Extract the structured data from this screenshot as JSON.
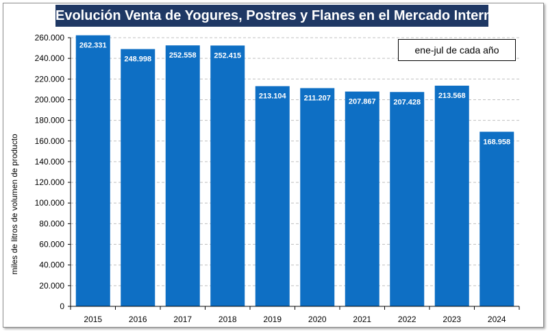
{
  "chart_data": {
    "type": "bar",
    "title": "Evolución Venta de Yogures, Postres y Flanes en el Mercado Interno",
    "annotation": "ene-jul de cada año",
    "xlabel": "",
    "ylabel": "miles de litros de volumen de producto",
    "ylim": [
      0,
      260000
    ],
    "ytick_step": 20000,
    "grid": true,
    "categories": [
      "2015",
      "2016",
      "2017",
      "2018",
      "2019",
      "2020",
      "2021",
      "2022",
      "2023",
      "2024"
    ],
    "values": [
      262331,
      248998,
      252558,
      252415,
      213104,
      211207,
      207867,
      207428,
      213568,
      168958
    ],
    "data_labels": [
      "262.331",
      "248.998",
      "252.558",
      "252.415",
      "213.104",
      "211.207",
      "207.867",
      "207.428",
      "213.568",
      "168.958"
    ],
    "yticks": [
      "0",
      "20.000",
      "40.000",
      "60.000",
      "80.000",
      "100.000",
      "120.000",
      "140.000",
      "160.000",
      "180.000",
      "200.000",
      "220.000",
      "240.000",
      "260.000"
    ],
    "colors": {
      "bar": "#0e6fc4",
      "title_bg": "#1f3864",
      "grid": "#bfbfbf"
    }
  }
}
